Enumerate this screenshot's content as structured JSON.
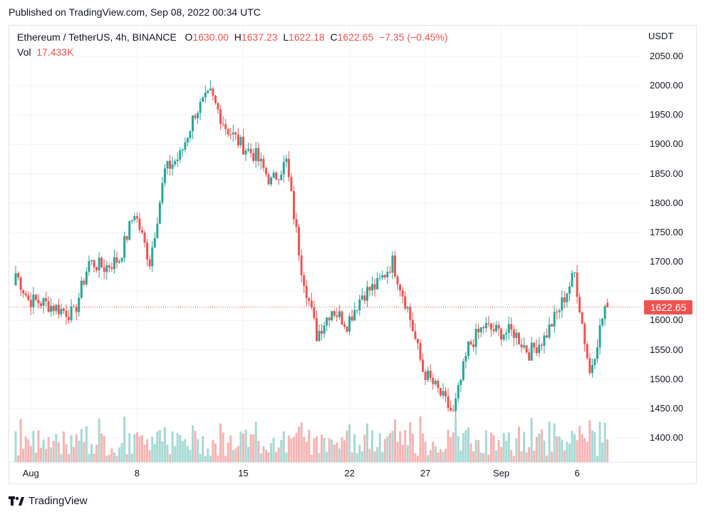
{
  "published": "Published on TradingView.com, Sep 08, 2022 00:34 UTC",
  "legend": {
    "symbol": "Ethereum / TetherUS, 4h, BINANCE",
    "o_label": "O",
    "o_value": "1630.00",
    "h_label": "H",
    "h_value": "1637.23",
    "l_label": "L",
    "l_value": "1622.18",
    "c_label": "C",
    "c_value": "1622.65",
    "change": "−7.35 (−0.45%)",
    "vol_label": "Vol",
    "vol_value": "17.433K"
  },
  "footer": {
    "brand": "TradingView",
    "logo": "tradingview-logo-icon"
  },
  "colors": {
    "up": "#26a69a",
    "down": "#ef5350",
    "vol_up": "#a6d9d4",
    "vol_down": "#f5b3b2",
    "grid": "#f0f3fa"
  },
  "chart_data": {
    "type": "candlestick",
    "title": "Ethereum / TetherUS, 4h, BINANCE",
    "y_unit": "USDT",
    "ylim": [
      1360,
      2075
    ],
    "yticks": [
      "2050.00",
      "2000.00",
      "1950.00",
      "1900.00",
      "1850.00",
      "1800.00",
      "1750.00",
      "1700.00",
      "1650.00",
      "1600.00",
      "1550.00",
      "1500.00",
      "1450.00",
      "1400.00"
    ],
    "x_ticks": [
      "Aug",
      "8",
      "15",
      "22",
      "27",
      "Sep",
      "6"
    ],
    "x_range": [
      "2022-07-31",
      "2022-09-08"
    ],
    "last_price": "1622.65",
    "grid": true,
    "daily_closes": [
      [
        "2022-07-31",
        1690
      ],
      [
        "2022-08-01",
        1635
      ],
      [
        "2022-08-02",
        1630
      ],
      [
        "2022-08-03",
        1620
      ],
      [
        "2022-08-04",
        1610
      ],
      [
        "2022-08-05",
        1700
      ],
      [
        "2022-08-06",
        1690
      ],
      [
        "2022-08-07",
        1705
      ],
      [
        "2022-08-08",
        1785
      ],
      [
        "2022-08-09",
        1700
      ],
      [
        "2022-08-10",
        1855
      ],
      [
        "2022-08-11",
        1880
      ],
      [
        "2022-08-12",
        1955
      ],
      [
        "2022-08-13",
        1985
      ],
      [
        "2022-08-14",
        1930
      ],
      [
        "2022-08-15",
        1900
      ],
      [
        "2022-08-16",
        1880
      ],
      [
        "2022-08-17",
        1835
      ],
      [
        "2022-08-18",
        1870
      ],
      [
        "2022-08-19",
        1690
      ],
      [
        "2022-08-20",
        1575
      ],
      [
        "2022-08-21",
        1620
      ],
      [
        "2022-08-22",
        1595
      ],
      [
        "2022-08-23",
        1645
      ],
      [
        "2022-08-24",
        1660
      ],
      [
        "2022-08-25",
        1700
      ],
      [
        "2022-08-26",
        1620
      ],
      [
        "2022-08-27",
        1515
      ],
      [
        "2022-08-28",
        1480
      ],
      [
        "2022-08-29",
        1440
      ],
      [
        "2022-08-30",
        1555
      ],
      [
        "2022-08-31",
        1590
      ],
      [
        "2022-09-01",
        1580
      ],
      [
        "2022-09-02",
        1580
      ],
      [
        "2022-09-03",
        1545
      ],
      [
        "2022-09-04",
        1570
      ],
      [
        "2022-09-05",
        1620
      ],
      [
        "2022-09-06",
        1680
      ],
      [
        "2022-09-07",
        1510
      ],
      [
        "2022-09-08",
        1622.65
      ]
    ]
  }
}
